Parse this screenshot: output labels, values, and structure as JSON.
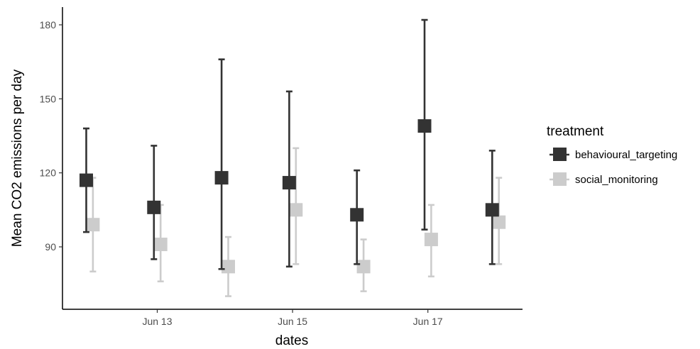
{
  "chart_data": {
    "type": "scatter",
    "title": "",
    "xlabel": "dates",
    "ylabel": "Mean CO2 emissions per day",
    "x": [
      "Jun 12",
      "Jun 13",
      "Jun 14",
      "Jun 15",
      "Jun 16",
      "Jun 17",
      "Jun 18"
    ],
    "x_tick_labels": [
      "Jun 13",
      "Jun 15",
      "Jun 17"
    ],
    "y_ticks": [
      90,
      120,
      150,
      180
    ],
    "ylim": [
      72,
      188
    ],
    "grid": false,
    "legend": {
      "title": "treatment",
      "position": "right"
    },
    "series": [
      {
        "name": "behavioural_targeting",
        "color": "#333333",
        "marker": "square",
        "values": [
          117,
          106,
          118,
          116,
          103,
          139,
          105
        ],
        "lower": [
          96,
          85,
          81,
          82,
          83,
          97,
          83
        ],
        "upper": [
          138,
          131,
          166,
          153,
          121,
          182,
          129
        ]
      },
      {
        "name": "social_monitoring",
        "color": "#cccccc",
        "marker": "square",
        "values": [
          99,
          91,
          82,
          105,
          82,
          93,
          100
        ],
        "lower": [
          80,
          76,
          70,
          83,
          72,
          78,
          83
        ],
        "upper": [
          118,
          107,
          94,
          130,
          93,
          107,
          118
        ]
      }
    ]
  }
}
